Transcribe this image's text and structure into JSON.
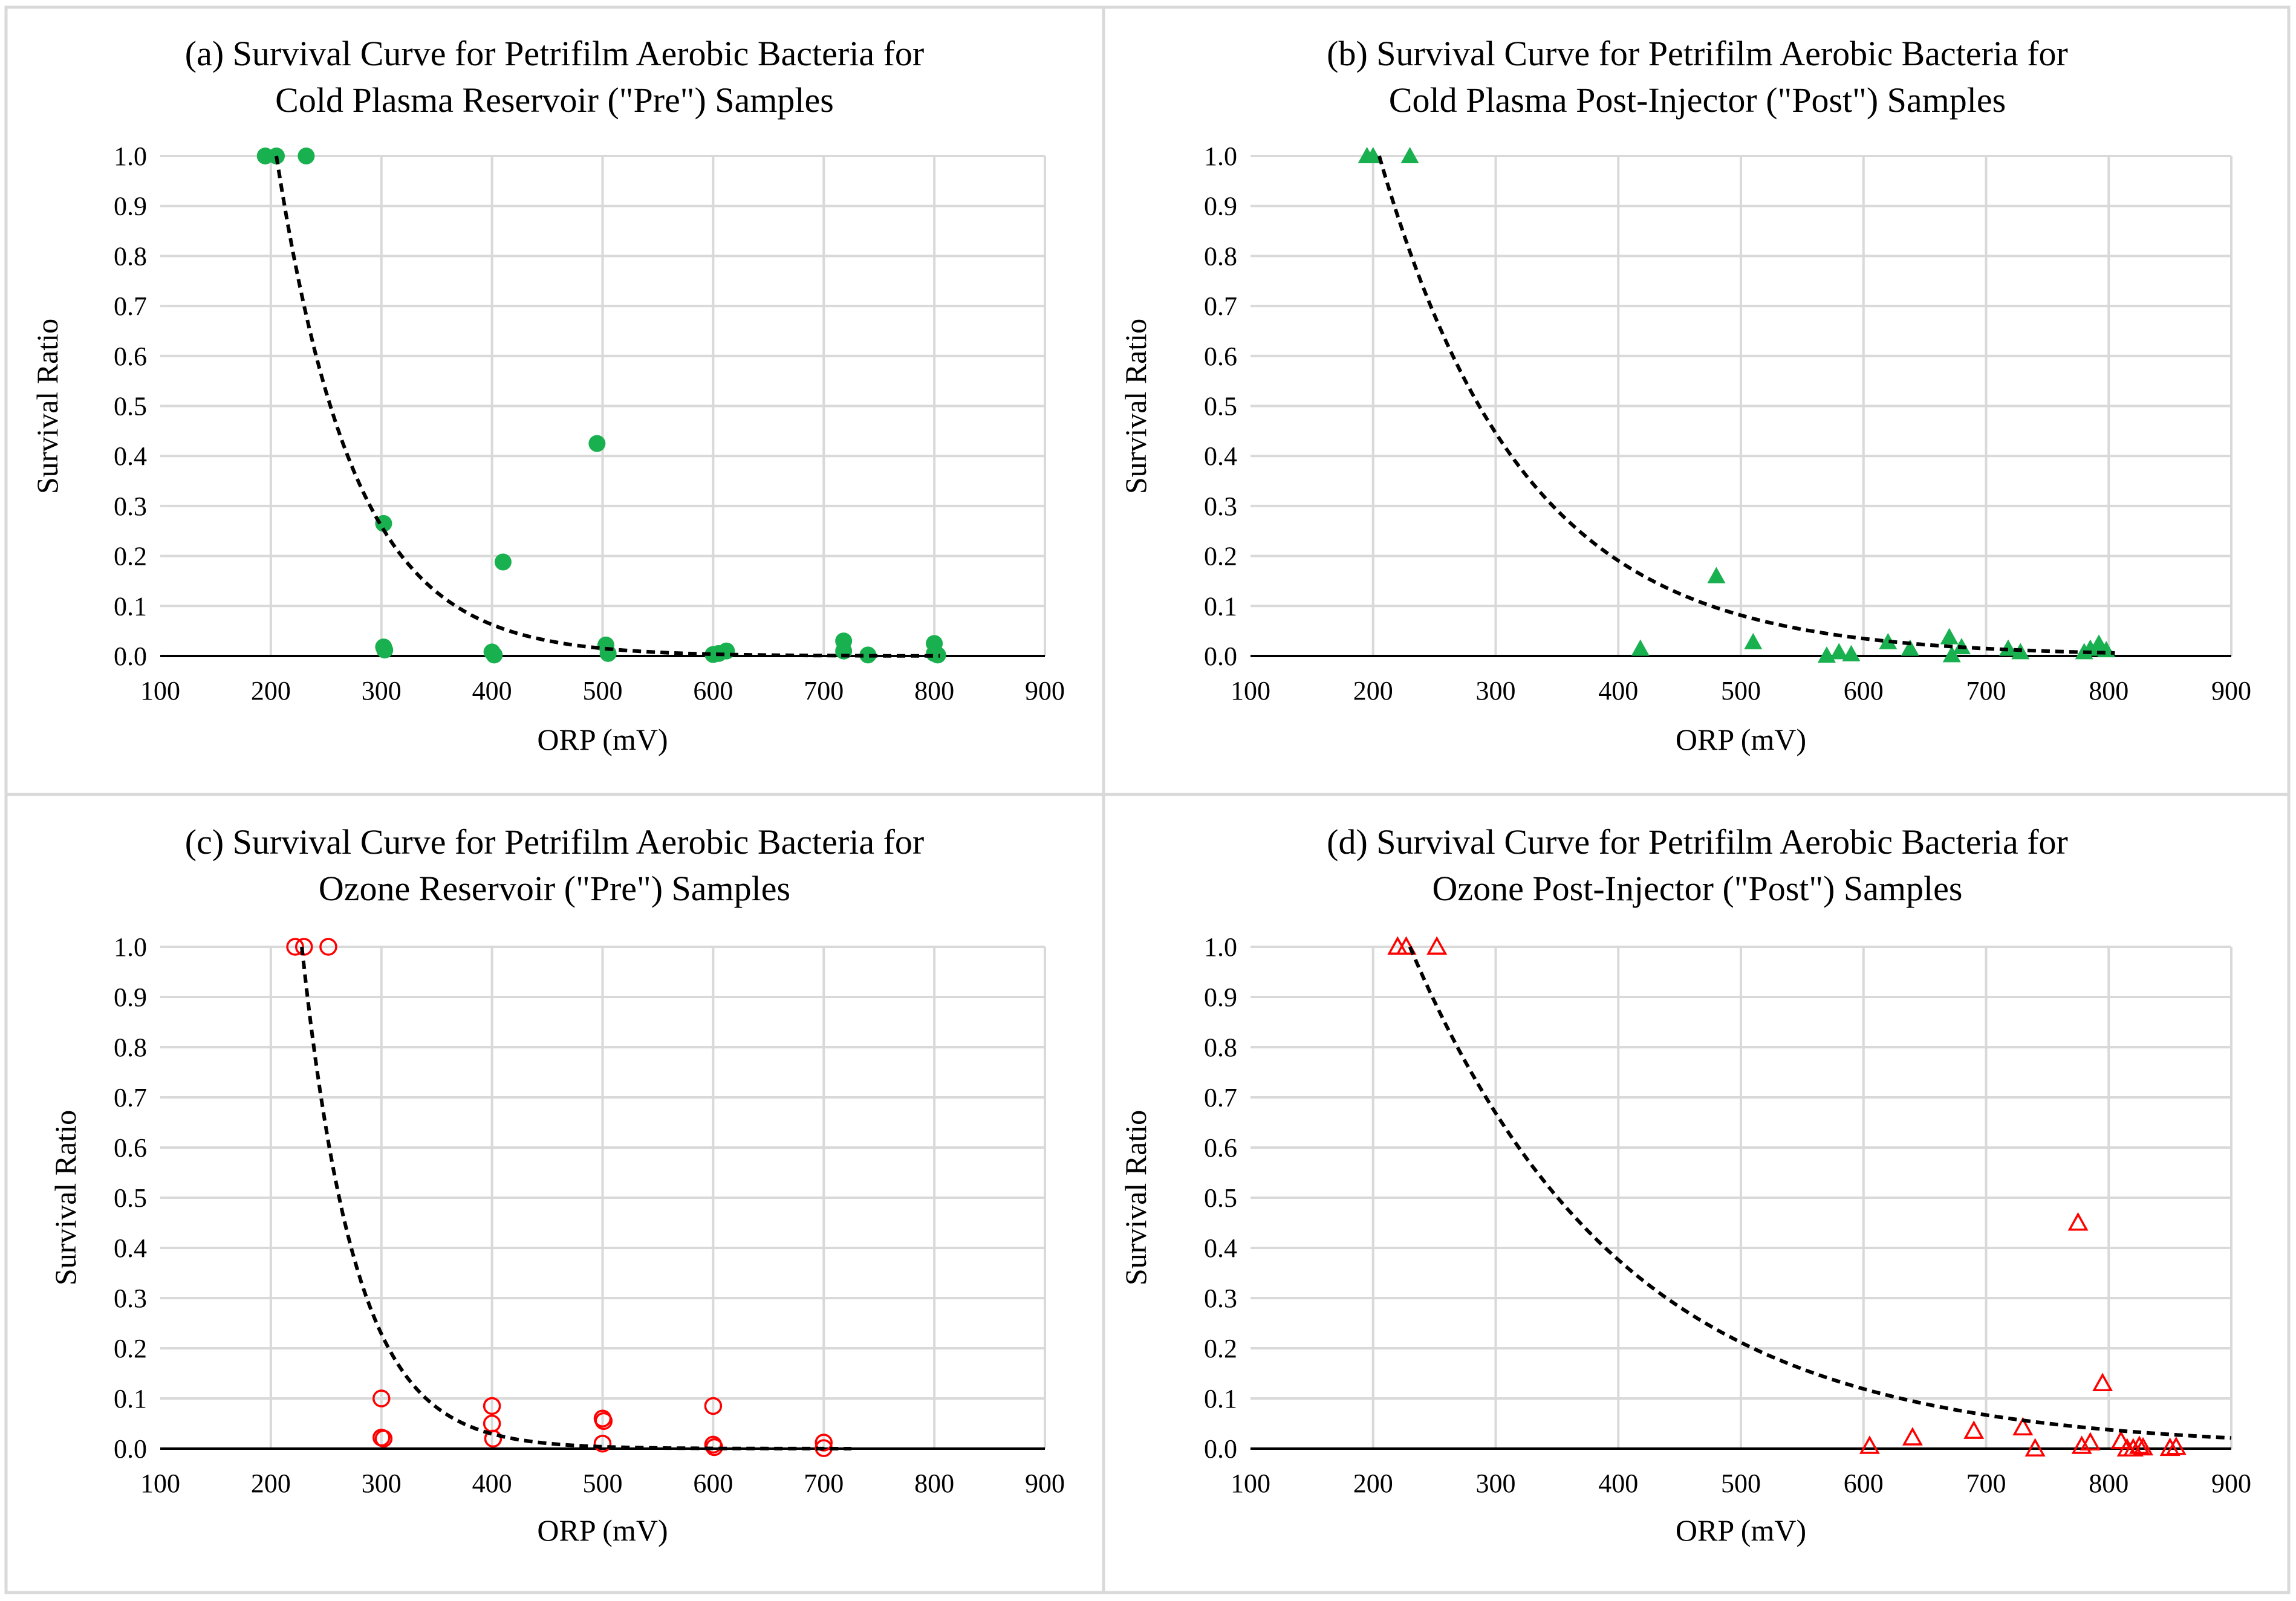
{
  "figure": {
    "frame_color": "#d9d9d9",
    "grid_color": "#d9d9d9",
    "axis_color": "#000000",
    "trend_color": "#000000",
    "green": "#19b04f",
    "red": "#ff0000"
  },
  "chart_data": [
    {
      "id": "a",
      "type": "scatter",
      "title_lines": [
        "(a) Survival Curve for Petrifilm Aerobic Bacteria for",
        "Cold Plasma Reservoir (\"Pre\") Samples"
      ],
      "xlabel": "ORP (mV)",
      "ylabel": "Survival Ratio",
      "xlim": [
        100,
        900
      ],
      "ylim": [
        0,
        1
      ],
      "xticks": [
        "100",
        "200",
        "300",
        "400",
        "500",
        "600",
        "700",
        "800",
        "900"
      ],
      "yticks": [
        "0.0",
        "0.1",
        "0.2",
        "0.3",
        "0.4",
        "0.5",
        "0.6",
        "0.7",
        "0.8",
        "0.9",
        "1.0"
      ],
      "marker": "filled-circle",
      "color": "#19b04f",
      "trendline": {
        "type": "exponential",
        "x_start": 205,
        "x_end": 805,
        "a": 1.0,
        "k": 0.0142
      },
      "points": [
        [
          195,
          1.0
        ],
        [
          205,
          1.0
        ],
        [
          232,
          1.0
        ],
        [
          302,
          0.265
        ],
        [
          302,
          0.018
        ],
        [
          303,
          0.012
        ],
        [
          400,
          0.008
        ],
        [
          402,
          0.002
        ],
        [
          410,
          0.188
        ],
        [
          495,
          0.425
        ],
        [
          503,
          0.022
        ],
        [
          505,
          0.005
        ],
        [
          600,
          0.003
        ],
        [
          605,
          0.005
        ],
        [
          612,
          0.01
        ],
        [
          718,
          0.03
        ],
        [
          718,
          0.01
        ],
        [
          740,
          0.002
        ],
        [
          800,
          0.025
        ],
        [
          800,
          0.005
        ],
        [
          803,
          0.002
        ]
      ]
    },
    {
      "id": "b",
      "type": "scatter",
      "title_lines": [
        "(b) Survival Curve for Petrifilm Aerobic Bacteria for",
        "Cold Plasma Post-Injector (\"Post\") Samples"
      ],
      "xlabel": "ORP (mV)",
      "ylabel": "Survival Ratio",
      "xlim": [
        100,
        900
      ],
      "ylim": [
        0,
        1
      ],
      "xticks": [
        "100",
        "200",
        "300",
        "400",
        "500",
        "600",
        "700",
        "800",
        "900"
      ],
      "yticks": [
        "0.0",
        "0.1",
        "0.2",
        "0.3",
        "0.4",
        "0.5",
        "0.6",
        "0.7",
        "0.8",
        "0.9",
        "1.0"
      ],
      "marker": "filled-triangle",
      "color": "#19b04f",
      "trendline": {
        "type": "exponential",
        "x_start": 205,
        "x_end": 805,
        "a": 1.0,
        "k": 0.0085
      },
      "points": [
        [
          195,
          1.0
        ],
        [
          200,
          1.0
        ],
        [
          230,
          1.0
        ],
        [
          418,
          0.015
        ],
        [
          480,
          0.16
        ],
        [
          510,
          0.028
        ],
        [
          570,
          0.001
        ],
        [
          580,
          0.008
        ],
        [
          590,
          0.004
        ],
        [
          620,
          0.028
        ],
        [
          638,
          0.015
        ],
        [
          670,
          0.038
        ],
        [
          672,
          0.002
        ],
        [
          680,
          0.018
        ],
        [
          718,
          0.015
        ],
        [
          728,
          0.008
        ],
        [
          780,
          0.008
        ],
        [
          785,
          0.015
        ],
        [
          792,
          0.025
        ],
        [
          798,
          0.012
        ]
      ]
    },
    {
      "id": "c",
      "type": "scatter",
      "title_lines": [
        "(c) Survival Curve for Petrifilm Aerobic Bacteria for",
        "Ozone Reservoir (\"Pre\") Samples"
      ],
      "xlabel": "ORP (mV)",
      "ylabel": "Survival Ratio",
      "xlim": [
        100,
        900
      ],
      "ylim": [
        0,
        1
      ],
      "xticks": [
        "100",
        "200",
        "300",
        "400",
        "500",
        "600",
        "700",
        "800",
        "900"
      ],
      "yticks": [
        "0.0",
        "0.1",
        "0.2",
        "0.3",
        "0.4",
        "0.5",
        "0.6",
        "0.7",
        "0.8",
        "0.9",
        "1.0"
      ],
      "marker": "open-circle",
      "color": "#ff0000",
      "trendline": {
        "type": "exponential",
        "x_start": 228,
        "x_end": 725,
        "a": 1.0,
        "k": 0.0205
      },
      "points": [
        [
          222,
          1.0
        ],
        [
          230,
          1.0
        ],
        [
          252,
          1.0
        ],
        [
          300,
          0.1
        ],
        [
          300,
          0.022
        ],
        [
          302,
          0.02
        ],
        [
          400,
          0.085
        ],
        [
          400,
          0.05
        ],
        [
          401,
          0.02
        ],
        [
          500,
          0.06
        ],
        [
          501,
          0.055
        ],
        [
          500,
          0.01
        ],
        [
          600,
          0.085
        ],
        [
          600,
          0.008
        ],
        [
          601,
          0.003
        ],
        [
          700,
          0.012
        ],
        [
          700,
          0.001
        ]
      ]
    },
    {
      "id": "d",
      "type": "scatter",
      "title_lines": [
        "(d) Survival Curve for Petrifilm Aerobic Bacteria for",
        "Ozone Post-Injector (\"Post\") Samples"
      ],
      "xlabel": "ORP (mV)",
      "ylabel": "Survival Ratio",
      "xlim": [
        100,
        900
      ],
      "ylim": [
        0,
        1
      ],
      "xticks": [
        "100",
        "200",
        "300",
        "400",
        "500",
        "600",
        "700",
        "800",
        "900"
      ],
      "yticks": [
        "0.0",
        "0.1",
        "0.2",
        "0.3",
        "0.4",
        "0.5",
        "0.6",
        "0.7",
        "0.8",
        "0.9",
        "1.0"
      ],
      "marker": "open-triangle",
      "color": "#ff0000",
      "trendline": {
        "type": "exponential",
        "x_start": 230,
        "x_end": 900,
        "a": 1.0,
        "k": 0.00575
      },
      "points": [
        [
          220,
          1.0
        ],
        [
          227,
          1.0
        ],
        [
          252,
          1.0
        ],
        [
          605,
          0.005
        ],
        [
          640,
          0.022
        ],
        [
          690,
          0.035
        ],
        [
          730,
          0.042
        ],
        [
          740,
          0.0
        ],
        [
          775,
          0.45
        ],
        [
          778,
          0.005
        ],
        [
          785,
          0.012
        ],
        [
          795,
          0.13
        ],
        [
          810,
          0.015
        ],
        [
          815,
          0.0
        ],
        [
          820,
          0.0
        ],
        [
          825,
          0.005
        ],
        [
          828,
          0.002
        ],
        [
          850,
          0.001
        ],
        [
          855,
          0.003
        ]
      ]
    }
  ]
}
